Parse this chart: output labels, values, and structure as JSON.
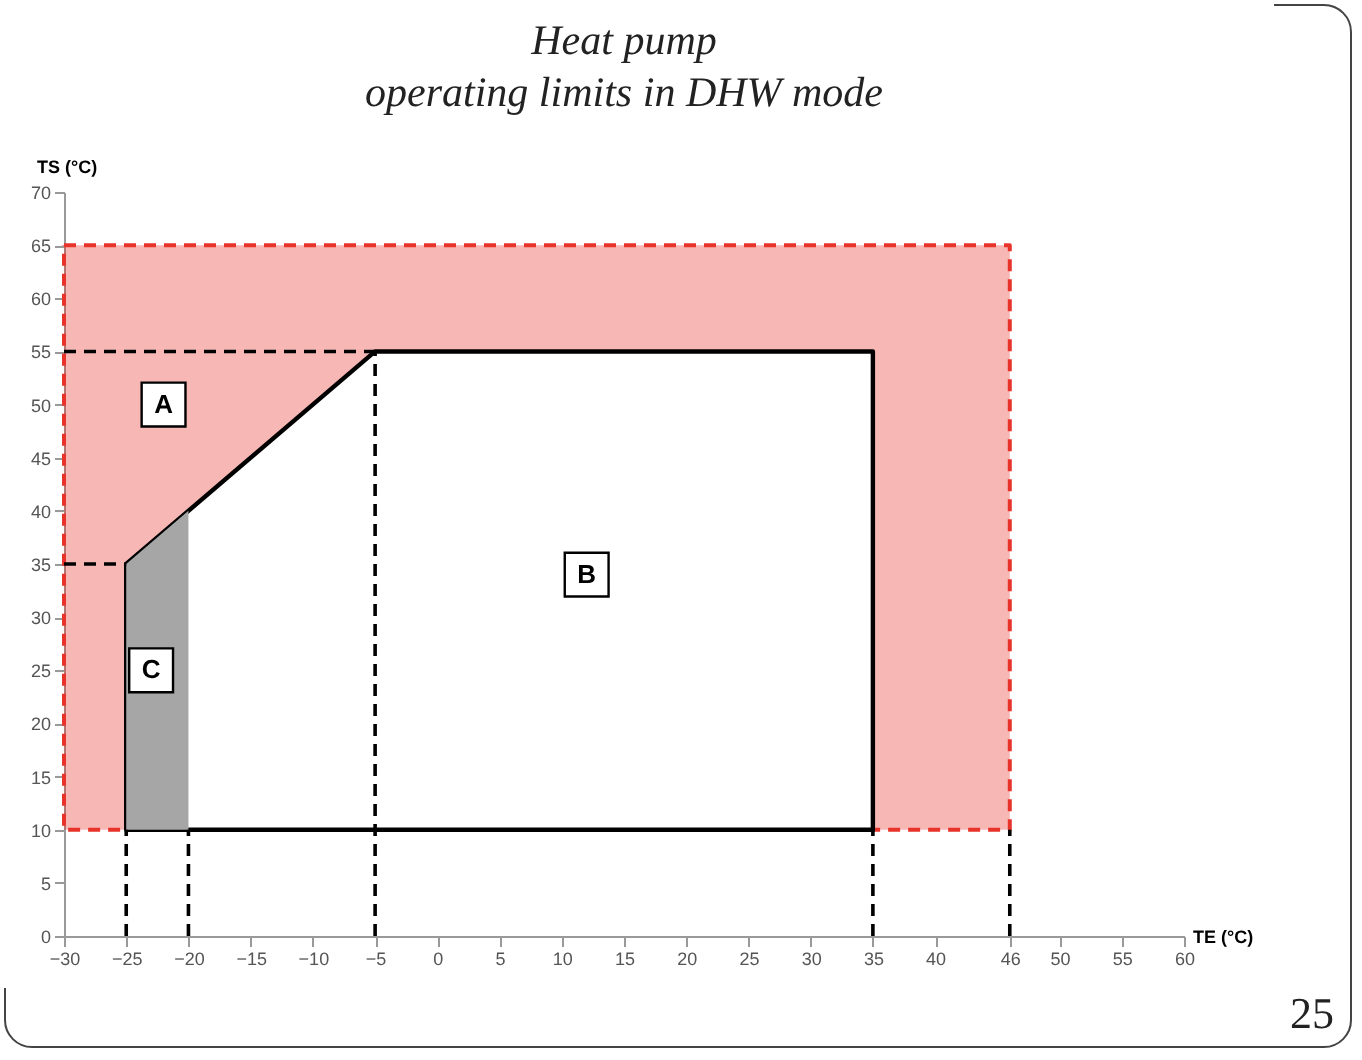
{
  "chart_data": {
    "type": "area",
    "title": "Heat pump\noperating limits in DHW mode",
    "xlabel": "TE (°C)",
    "ylabel": "TS (°C)",
    "xlim": [
      -30,
      60
    ],
    "xticks": [
      -30,
      -25,
      -20,
      -15,
      -10,
      -5,
      0,
      5,
      10,
      15,
      20,
      25,
      30,
      35,
      40,
      46,
      50,
      55,
      60
    ],
    "ylim": [
      0,
      70
    ],
    "yticks": [
      0,
      5,
      10,
      15,
      20,
      25,
      30,
      35,
      40,
      45,
      50,
      55,
      60,
      65,
      70
    ],
    "grid": false,
    "series": [
      {
        "color": "#e8332b",
        "line_style": "dashed",
        "x": [
          -30,
          46,
          46,
          -30,
          -30
        ],
        "values": [
          65,
          65,
          10,
          10,
          65
        ]
      },
      {
        "color": "#000000",
        "line_style": "solid",
        "x": [
          -25,
          -5,
          35,
          35,
          -25,
          -25
        ],
        "values": [
          35,
          55,
          55,
          10,
          10,
          35
        ]
      },
      {
        "color": "#a6a6a6",
        "x": [
          -25,
          -20,
          -20,
          -25,
          -25
        ],
        "values": [
          35,
          40,
          10,
          10,
          35
        ]
      },
      {
        "type": "line",
        "color": "#000000",
        "line_style": "dashed",
        "x": [
          -25,
          -25
        ],
        "values": [
          0,
          10
        ]
      },
      {
        "type": "line",
        "color": "#000000",
        "line_style": "dashed",
        "x": [
          -20,
          -20
        ],
        "values": [
          0,
          10
        ]
      },
      {
        "type": "line",
        "color": "#000000",
        "line_style": "dashed",
        "x": [
          -5,
          -5
        ],
        "values": [
          0,
          55
        ]
      },
      {
        "type": "line",
        "color": "#000000",
        "line_style": "dashed",
        "x": [
          35,
          35
        ],
        "values": [
          0,
          10
        ]
      },
      {
        "type": "line",
        "color": "#000000",
        "line_style": "dashed",
        "x": [
          46,
          46
        ],
        "values": [
          0,
          10
        ]
      },
      {
        "type": "line",
        "color": "#000000",
        "line_style": "dashed",
        "x": [
          -30,
          -5
        ],
        "values": [
          55,
          55
        ]
      },
      {
        "type": "line",
        "color": "#000000",
        "line_style": "dashed",
        "x": [
          -30,
          -25
        ],
        "values": [
          35,
          35
        ]
      }
    ],
    "annotations": [
      {
        "text": "A",
        "x": -22,
        "y": 50
      },
      {
        "text": "B",
        "x": 12,
        "y": 34
      },
      {
        "text": "C",
        "x": -23,
        "y": 25
      },
      "25"
    ]
  }
}
